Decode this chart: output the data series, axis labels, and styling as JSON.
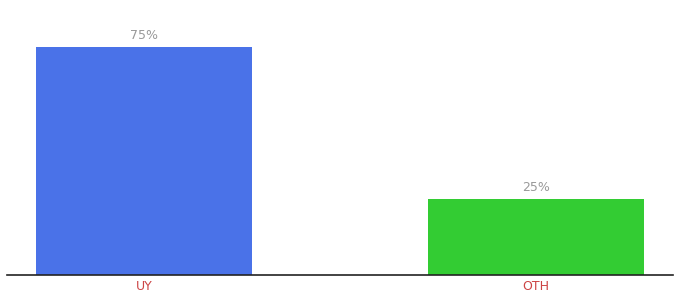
{
  "categories": [
    "UY",
    "OTH"
  ],
  "values": [
    75,
    25
  ],
  "bar_colors": [
    "#4A72E8",
    "#33CC33"
  ],
  "label_color": "#999999",
  "label_fontsize": 9,
  "tick_color": "#cc4444",
  "tick_fontsize": 9,
  "background_color": "#ffffff",
  "ylim": [
    0,
    88
  ],
  "bar_width": 0.55,
  "xlim": [
    -0.35,
    1.35
  ],
  "spine_color": "#222222"
}
